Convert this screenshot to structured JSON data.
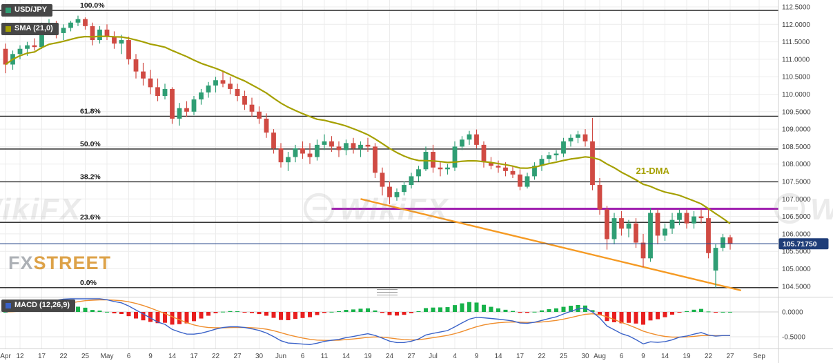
{
  "header": {
    "symbol_badge": "USD/JPY",
    "sma_badge": "SMA (21,0)",
    "macd_badge": "MACD (12,26,9)"
  },
  "logo": {
    "part1": "FX",
    "part2": "STREET"
  },
  "watermark": {
    "text": "WikiFX"
  },
  "colors": {
    "up": "#2f9e74",
    "down": "#d04a43",
    "sma": "#a5a000",
    "fib": "#1c1c1c",
    "grid": "#ececec",
    "purple_line": "#a020b0",
    "orange_line": "#f59a23",
    "price_line": "#2a4a8c",
    "price_badge_bg": "#1e3d78",
    "macd_line": "#3a62c8",
    "signal_line": "#ef8e2e",
    "hist_up": "#17b24a",
    "hist_down": "#e81f1f",
    "axis_text": "#3f3f3f",
    "watermark_grey": "#8f8f8f"
  },
  "price_axis_ticks": [
    "112.5000",
    "112.0000",
    "111.5000",
    "111.0000",
    "110.5000",
    "110.0000",
    "109.5000",
    "109.0000",
    "108.5000",
    "108.0000",
    "107.5000",
    "107.0000",
    "106.5000",
    "106.0000",
    "105.5000",
    "105.0000",
    "104.5000"
  ],
  "macd_axis_ticks": [
    {
      "label": "0.0000",
      "value": 0
    },
    {
      "label": "-0.5000",
      "value": -0.5
    }
  ],
  "last_price": {
    "label": "105.71750",
    "value": 105.7175
  },
  "chart_data": [
    {
      "type": "candlestick",
      "symbol": "USD/JPY",
      "timeframe": "daily",
      "ylim": [
        104.2,
        112.7
      ],
      "y_tick_step": 0.5,
      "candles": [
        [
          111.3,
          111.45,
          110.6,
          110.85
        ],
        [
          110.85,
          111.25,
          110.7,
          111.15
        ],
        [
          111.15,
          111.4,
          111.0,
          111.3
        ],
        [
          111.3,
          111.5,
          111.1,
          111.4
        ],
        [
          111.4,
          111.6,
          111.25,
          111.35
        ],
        [
          111.35,
          112.05,
          111.3,
          111.95
        ],
        [
          111.95,
          112.15,
          111.75,
          112.0
        ],
        [
          112.0,
          112.1,
          111.6,
          111.75
        ],
        [
          111.75,
          112.0,
          111.55,
          111.9
        ],
        [
          111.9,
          112.1,
          111.8,
          112.05
        ],
        [
          112.05,
          112.25,
          111.95,
          112.15
        ],
        [
          112.15,
          112.2,
          111.85,
          111.95
        ],
        [
          111.95,
          112.05,
          111.4,
          111.55
        ],
        [
          111.55,
          111.95,
          111.45,
          111.85
        ],
        [
          111.85,
          112.0,
          111.55,
          111.65
        ],
        [
          111.65,
          111.8,
          111.3,
          111.45
        ],
        [
          111.45,
          111.7,
          111.15,
          111.55
        ],
        [
          111.55,
          111.65,
          110.85,
          111.0
        ],
        [
          111.0,
          111.15,
          110.45,
          110.65
        ],
        [
          110.65,
          110.9,
          110.25,
          110.45
        ],
        [
          110.45,
          110.7,
          110.0,
          110.2
        ],
        [
          110.2,
          110.45,
          109.8,
          109.95
        ],
        [
          109.95,
          110.3,
          109.85,
          110.15
        ],
        [
          110.15,
          110.2,
          109.15,
          109.3
        ],
        [
          109.3,
          109.75,
          109.1,
          109.6
        ],
        [
          109.6,
          109.8,
          109.35,
          109.5
        ],
        [
          109.5,
          109.95,
          109.4,
          109.85
        ],
        [
          109.85,
          110.15,
          109.7,
          110.05
        ],
        [
          110.05,
          110.35,
          109.9,
          110.25
        ],
        [
          110.25,
          110.5,
          110.05,
          110.4
        ],
        [
          110.4,
          110.65,
          110.2,
          110.3
        ],
        [
          110.3,
          110.5,
          110.0,
          110.15
        ],
        [
          110.15,
          110.3,
          109.8,
          109.95
        ],
        [
          109.95,
          110.1,
          109.55,
          109.7
        ],
        [
          109.7,
          109.9,
          109.35,
          109.5
        ],
        [
          109.5,
          109.65,
          109.15,
          109.3
        ],
        [
          109.3,
          109.45,
          108.75,
          108.9
        ],
        [
          108.9,
          109.0,
          108.3,
          108.45
        ],
        [
          108.45,
          108.6,
          107.9,
          108.05
        ],
        [
          108.05,
          108.35,
          107.8,
          108.2
        ],
        [
          108.2,
          108.55,
          108.05,
          108.45
        ],
        [
          108.45,
          108.65,
          108.15,
          108.3
        ],
        [
          108.3,
          108.6,
          108.0,
          108.2
        ],
        [
          108.2,
          108.7,
          108.1,
          108.55
        ],
        [
          108.55,
          108.85,
          108.4,
          108.65
        ],
        [
          108.65,
          108.8,
          108.35,
          108.5
        ],
        [
          108.5,
          108.65,
          108.2,
          108.4
        ],
        [
          108.4,
          108.7,
          108.25,
          108.6
        ],
        [
          108.6,
          108.75,
          108.3,
          108.45
        ],
        [
          108.45,
          108.65,
          108.2,
          108.55
        ],
        [
          108.55,
          108.75,
          108.35,
          108.5
        ],
        [
          108.5,
          108.6,
          107.6,
          107.75
        ],
        [
          107.75,
          107.9,
          107.1,
          107.35
        ],
        [
          107.35,
          107.5,
          106.85,
          107.05
        ],
        [
          107.05,
          107.3,
          106.95,
          107.2
        ],
        [
          107.2,
          107.5,
          107.1,
          107.4
        ],
        [
          107.4,
          107.75,
          107.3,
          107.65
        ],
        [
          107.65,
          107.95,
          107.5,
          107.85
        ],
        [
          107.85,
          108.5,
          107.8,
          108.35
        ],
        [
          108.35,
          108.55,
          107.75,
          107.9
        ],
        [
          107.9,
          108.05,
          107.65,
          107.85
        ],
        [
          107.85,
          108.0,
          107.7,
          107.9
        ],
        [
          107.9,
          108.65,
          107.8,
          108.5
        ],
        [
          108.5,
          108.8,
          108.4,
          108.7
        ],
        [
          108.7,
          108.95,
          108.55,
          108.85
        ],
        [
          108.85,
          108.99,
          108.45,
          108.55
        ],
        [
          108.55,
          108.65,
          107.9,
          108.05
        ],
        [
          108.05,
          108.2,
          107.85,
          107.95
        ],
        [
          107.95,
          108.1,
          107.75,
          107.9
        ],
        [
          107.9,
          108.05,
          107.65,
          107.8
        ],
        [
          107.8,
          107.95,
          107.6,
          107.7
        ],
        [
          107.7,
          107.85,
          107.25,
          107.35
        ],
        [
          107.35,
          107.75,
          107.3,
          107.65
        ],
        [
          107.65,
          108.05,
          107.55,
          107.95
        ],
        [
          107.95,
          108.25,
          107.8,
          108.15
        ],
        [
          108.15,
          108.35,
          108.0,
          108.25
        ],
        [
          108.25,
          108.4,
          108.1,
          108.3
        ],
        [
          108.3,
          108.75,
          108.2,
          108.65
        ],
        [
          108.65,
          108.85,
          108.5,
          108.75
        ],
        [
          108.75,
          108.95,
          108.6,
          108.85
        ],
        [
          108.85,
          109.0,
          108.5,
          108.65
        ],
        [
          108.65,
          109.32,
          107.25,
          107.4
        ],
        [
          107.4,
          107.6,
          106.55,
          106.7
        ],
        [
          106.7,
          106.8,
          105.55,
          105.85
        ],
        [
          105.85,
          106.6,
          105.7,
          106.45
        ],
        [
          106.45,
          106.65,
          105.95,
          106.15
        ],
        [
          106.15,
          106.4,
          105.9,
          106.3
        ],
        [
          106.3,
          106.45,
          105.6,
          105.75
        ],
        [
          105.75,
          106.0,
          105.05,
          105.3
        ],
        [
          105.3,
          106.75,
          105.2,
          106.6
        ],
        [
          106.6,
          106.7,
          105.7,
          105.95
        ],
        [
          105.95,
          106.3,
          105.8,
          106.15
        ],
        [
          106.15,
          106.6,
          106.0,
          106.4
        ],
        [
          106.4,
          106.7,
          106.25,
          106.6
        ],
        [
          106.6,
          106.7,
          106.15,
          106.3
        ],
        [
          106.3,
          106.65,
          106.15,
          106.5
        ],
        [
          106.5,
          106.7,
          106.3,
          106.45
        ],
        [
          106.45,
          106.75,
          105.3,
          105.45
        ],
        [
          104.95,
          105.7,
          104.46,
          105.6
        ],
        [
          105.6,
          106.0,
          105.5,
          105.9
        ],
        [
          105.9,
          105.97,
          105.55,
          105.7175
        ]
      ],
      "x_axis_labels": [
        {
          "label": "Apr",
          "i": 0
        },
        {
          "label": "12",
          "i": 2
        },
        {
          "label": "17",
          "i": 5
        },
        {
          "label": "22",
          "i": 8
        },
        {
          "label": "25",
          "i": 11
        },
        {
          "label": "May",
          "i": 14
        },
        {
          "label": "6",
          "i": 17
        },
        {
          "label": "9",
          "i": 20
        },
        {
          "label": "14",
          "i": 23
        },
        {
          "label": "17",
          "i": 26
        },
        {
          "label": "22",
          "i": 29
        },
        {
          "label": "27",
          "i": 32
        },
        {
          "label": "30",
          "i": 35
        },
        {
          "label": "Jun",
          "i": 38
        },
        {
          "label": "6",
          "i": 41
        },
        {
          "label": "11",
          "i": 44
        },
        {
          "label": "14",
          "i": 47
        },
        {
          "label": "19",
          "i": 50
        },
        {
          "label": "24",
          "i": 53
        },
        {
          "label": "27",
          "i": 56
        },
        {
          "label": "Jul",
          "i": 59
        },
        {
          "label": "4",
          "i": 62
        },
        {
          "label": "9",
          "i": 65
        },
        {
          "label": "14",
          "i": 68
        },
        {
          "label": "17",
          "i": 71
        },
        {
          "label": "22",
          "i": 74
        },
        {
          "label": "25",
          "i": 77
        },
        {
          "label": "30",
          "i": 80
        },
        {
          "label": "Aug",
          "i": 82
        },
        {
          "label": "6",
          "i": 85
        },
        {
          "label": "9",
          "i": 88
        },
        {
          "label": "14",
          "i": 91
        },
        {
          "label": "19",
          "i": 94
        },
        {
          "label": "22",
          "i": 97
        },
        {
          "label": "27",
          "i": 100
        },
        {
          "label": "Sep",
          "i": 104
        }
      ],
      "overlays": {
        "sma": {
          "period": 21,
          "label": "SMA (21,0)"
        },
        "fibonacci": [
          {
            "label": "100.0%",
            "price": 112.4
          },
          {
            "label": "61.8%",
            "price": 109.37
          },
          {
            "label": "50.0%",
            "price": 108.43
          },
          {
            "label": "38.2%",
            "price": 107.49
          },
          {
            "label": "23.6%",
            "price": 106.33
          },
          {
            "label": "0.0%",
            "price": 104.46
          }
        ],
        "horizontal_resistance": {
          "price": 106.72,
          "from_i": 45
        },
        "descending_trendline": {
          "from_i": 49,
          "from_price": 107.0,
          "to_i": 101.5,
          "to_price": 104.38
        },
        "annotation": {
          "text": "21-DMA",
          "i": 87,
          "price": 107.8
        },
        "current_price_line": 105.7175
      }
    },
    {
      "type": "bar",
      "name": "MACD",
      "params": {
        "fast": 12,
        "slow": 26,
        "signal": 9
      },
      "derived_from": "chart_data[0].candles closes",
      "y_ticks": [
        0.0,
        -0.5
      ],
      "legend": "MACD (12,26,9)"
    }
  ]
}
